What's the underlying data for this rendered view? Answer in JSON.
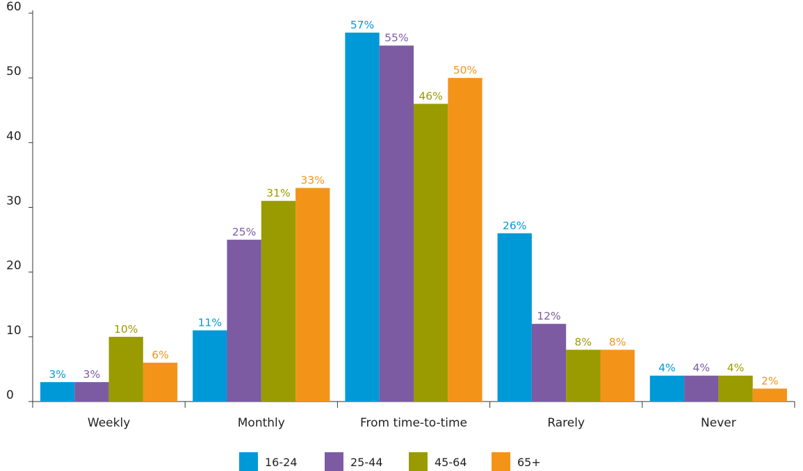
{
  "chart_data": {
    "type": "bar",
    "title": "",
    "xlabel": "",
    "ylabel": "",
    "ylim": [
      0,
      60
    ],
    "yticks": [
      0,
      10,
      20,
      30,
      40,
      50,
      60
    ],
    "grid": false,
    "legend_position": "bottom",
    "categories": [
      "Weekly",
      "Monthly",
      "From time-to-time",
      "Rarely",
      "Never"
    ],
    "series": [
      {
        "name": "16-24",
        "color": "#0099d8",
        "values": [
          3,
          11,
          57,
          26,
          4
        ],
        "labels": [
          "3%",
          "11%",
          "57%",
          "26%",
          "4%"
        ]
      },
      {
        "name": "25-44",
        "color": "#7c5ba3",
        "values": [
          3,
          25,
          55,
          12,
          4
        ],
        "labels": [
          "3%",
          "25%",
          "55%",
          "12%",
          "4%"
        ]
      },
      {
        "name": "45-64",
        "color": "#9a9b00",
        "values": [
          10,
          31,
          46,
          8,
          4
        ],
        "labels": [
          "10%",
          "31%",
          "46%",
          "8%",
          "4%"
        ]
      },
      {
        "name": "65+",
        "color": "#f39419",
        "values": [
          6,
          33,
          50,
          8,
          2
        ],
        "labels": [
          "6%",
          "33%",
          "50%",
          "8%",
          "2%"
        ]
      }
    ]
  }
}
